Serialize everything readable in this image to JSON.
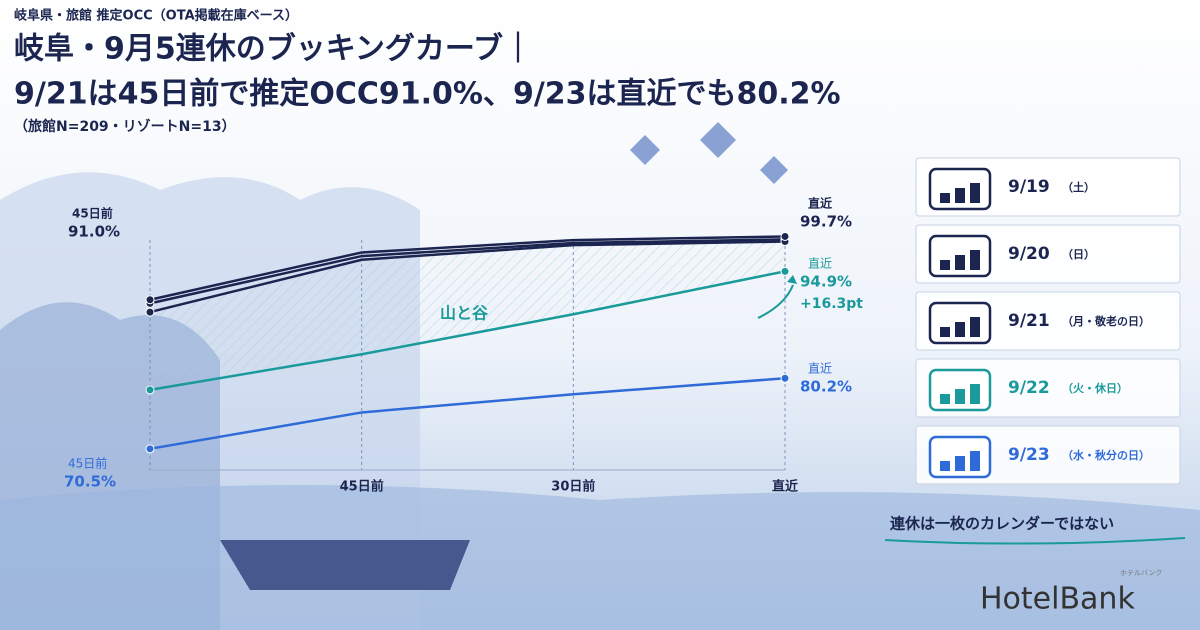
{
  "header": {
    "kicker": "岐阜県・旅館 推定OCC（OTA掲載在庫ベース）",
    "title_line1": "岐阜・9月5連休のブッキングカーブ｜",
    "title_line2": "9/21は45日前で推定OCC91.0%、9/23は直近でも80.2%",
    "subtitle": "（旅館N=209・リゾートN=13）"
  },
  "chart_data": {
    "type": "line",
    "categories": [
      null,
      "45日前",
      "30日前",
      "直近"
    ],
    "ylim": [
      68,
      101
    ],
    "series": [
      {
        "name": "9/19",
        "note": "（土）",
        "color": "#1b2550",
        "values": [
          90.5,
          97.0,
          98.8,
          99.3
        ]
      },
      {
        "name": "9/20",
        "note": "（日）",
        "color": "#1b2550",
        "values": [
          89.3,
          96.5,
          98.5,
          99.0
        ]
      },
      {
        "name": "9/21",
        "note": "（月・敬老の日）",
        "color": "#1b2550",
        "values": [
          91.0,
          97.5,
          99.2,
          99.7
        ],
        "value_labels": [
          "91.0%",
          null,
          null,
          "99.7%"
        ]
      },
      {
        "name": "9/22",
        "note": "（火・休日）",
        "color": "#1a9a9a",
        "values": [
          78.6,
          83.5,
          89.0,
          94.9
        ],
        "value_labels": [
          null,
          null,
          null,
          "94.9%"
        ]
      },
      {
        "name": "9/23",
        "note": "（水・秋分の日）",
        "color": "#2f6bd8",
        "values": [
          70.5,
          75.5,
          78.0,
          80.2
        ],
        "value_labels": [
          "70.5%",
          null,
          null,
          "80.2%"
        ]
      }
    ],
    "annotations": [
      "45日前",
      "直近",
      "直近",
      "+16.3pt",
      "直近",
      "45日前",
      "山と谷"
    ]
  },
  "footer": {
    "tagline": "連休は一枚のカレンダーではない",
    "logo": "HotelBank",
    "logo_kana": "ホテルバンク"
  }
}
